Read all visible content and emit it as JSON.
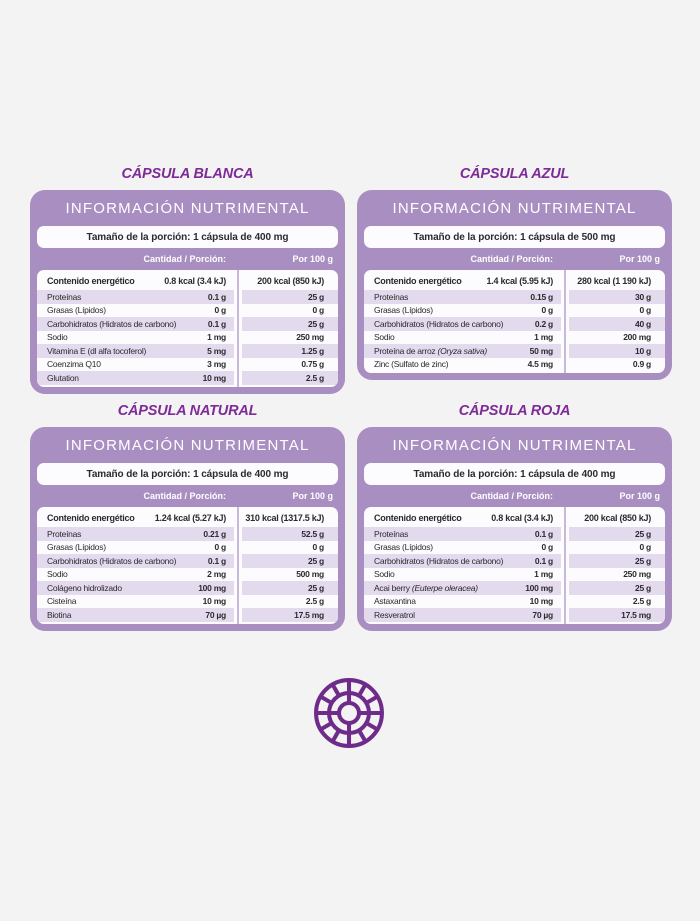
{
  "page": {
    "background": "#f4f3f4"
  },
  "colors": {
    "panel_purple": "#a98fc1",
    "stripe_lavender": "#e3daee",
    "title_purple": "#7d2b96",
    "logo_purple": "#6e2b8a",
    "divider_line": "#c9b8da"
  },
  "shared": {
    "info_header": "INFORMACIÓN NUTRIMENTAL",
    "col1_header": "Cantidad / Porción:",
    "col2_header": "Por 100 g"
  },
  "logo": {
    "name": "radial-wheel-emblem"
  },
  "tables": [
    {
      "title": "CÁPSULA BLANCA",
      "serving": "Tamaño de la porción: 1 cápsula de 400 mg",
      "rows": [
        {
          "label": "Contenido energético",
          "v1": "0.8 kcal (3.4 kJ)",
          "v2": "200 kcal (850 kJ)",
          "bold": true
        },
        {
          "label": "Proteínas",
          "v1": "0.1 g",
          "v2": "25 g"
        },
        {
          "label": "Grasas (Lípidos)",
          "v1": "0 g",
          "v2": "0 g"
        },
        {
          "label": "Carbohidratos (Hidratos de carbono)",
          "v1": "0.1 g",
          "v2": "25 g"
        },
        {
          "label": "Sodio",
          "v1": "1 mg",
          "v2": "250 mg"
        },
        {
          "label": "Vitamina E (dl alfa tocoferol)",
          "v1": "5 mg",
          "v2": "1.25 g"
        },
        {
          "label": "Coenzima Q10",
          "v1": "3 mg",
          "v2": "0.75 g"
        },
        {
          "label": "Glutation",
          "v1": "10 mg",
          "v2": "2.5 g"
        }
      ]
    },
    {
      "title": "CÁPSULA AZUL",
      "serving": "Tamaño de la porción: 1 cápsula de 500 mg",
      "rows": [
        {
          "label": "Contenido energético",
          "v1": "1.4 kcal (5.95 kJ)",
          "v2": "280 kcal (1 190 kJ)",
          "bold": true
        },
        {
          "label": "Proteínas",
          "v1": "0.15 g",
          "v2": "30 g"
        },
        {
          "label": "Grasas (Lípidos)",
          "v1": "0 g",
          "v2": "0 g"
        },
        {
          "label": "Carbohidratos (Hidratos de carbono)",
          "v1": "0.2 g",
          "v2": "40 g"
        },
        {
          "label": "Sodio",
          "v1": "1 mg",
          "v2": "200 mg"
        },
        {
          "label": "Proteína de arroz ",
          "label_italic": "(Oryza sativa)",
          "v1": "50 mg",
          "v2": "10 g"
        },
        {
          "label": "Zinc (Sulfato de zinc)",
          "v1": "4.5 mg",
          "v2": "0.9 g"
        }
      ]
    },
    {
      "title": "CÁPSULA NATURAL",
      "serving": "Tamaño de la porción: 1 cápsula de 400 mg",
      "rows": [
        {
          "label": "Contenido energético",
          "v1": "1.24 kcal (5.27 kJ)",
          "v2": "310 kcal (1317.5 kJ)",
          "bold": true
        },
        {
          "label": "Proteínas",
          "v1": "0.21 g",
          "v2": "52.5 g"
        },
        {
          "label": "Grasas (Lípidos)",
          "v1": "0 g",
          "v2": "0 g"
        },
        {
          "label": "Carbohidratos (Hidratos de carbono)",
          "v1": "0.1 g",
          "v2": "25 g"
        },
        {
          "label": "Sodio",
          "v1": "2 mg",
          "v2": "500 mg"
        },
        {
          "label": "Colágeno hidrolizado",
          "v1": "100 mg",
          "v2": "25 g"
        },
        {
          "label": "Cisteína",
          "v1": "10 mg",
          "v2": "2.5 g"
        },
        {
          "label": "Biotina",
          "v1": "70 µg",
          "v2": "17.5 mg"
        }
      ]
    },
    {
      "title": "CÁPSULA ROJA",
      "serving": "Tamaño de la porción: 1 cápsula de 400 mg",
      "rows": [
        {
          "label": "Contenido energético",
          "v1": "0.8 kcal (3.4 kJ)",
          "v2": "200 kcal (850 kJ)",
          "bold": true
        },
        {
          "label": "Proteínas",
          "v1": "0.1 g",
          "v2": "25 g"
        },
        {
          "label": "Grasas (Lípidos)",
          "v1": "0 g",
          "v2": "0 g"
        },
        {
          "label": "Carbohidratos (Hidratos de carbono)",
          "v1": "0.1 g",
          "v2": "25 g"
        },
        {
          "label": "Sodio",
          "v1": "1 mg",
          "v2": "250 mg"
        },
        {
          "label": "Acai berry ",
          "label_italic": "(Euterpe oleracea)",
          "v1": "100 mg",
          "v2": "25 g"
        },
        {
          "label": "Astaxantina",
          "v1": "10 mg",
          "v2": "2.5 g"
        },
        {
          "label": "Resveratrol",
          "v1": "70 µg",
          "v2": "17.5 mg"
        }
      ]
    }
  ]
}
